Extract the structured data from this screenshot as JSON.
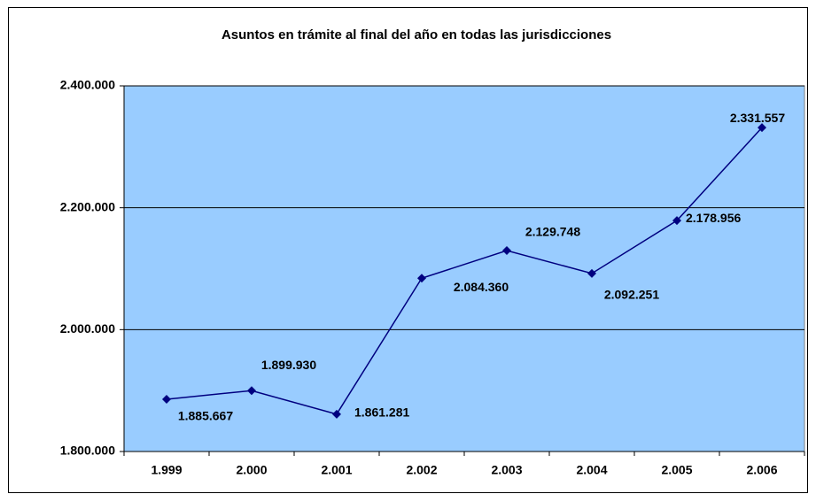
{
  "chart_data": {
    "type": "line",
    "title": "Asuntos en trámite al final del año en todas las jurisdicciones",
    "categories": [
      "1.999",
      "2.000",
      "2.001",
      "2.002",
      "2.003",
      "2.004",
      "2.005",
      "2.006"
    ],
    "series": [
      {
        "color": "#000080",
        "values": [
          1885667,
          1899930,
          1861281,
          2084360,
          2129748,
          2092251,
          2178956,
          2331557
        ],
        "value_labels": [
          "1.885.667",
          "1.899.930",
          "1.861.281",
          "2.084.360",
          "2.129.748",
          "2.092.251",
          "2.178.956",
          "2.331.557"
        ]
      }
    ],
    "ylim": [
      1800000,
      2400000
    ],
    "yticks": [
      {
        "value": 1800000,
        "label": "1.800.000"
      },
      {
        "value": 2000000,
        "label": "2.000.000"
      },
      {
        "value": 2200000,
        "label": "2.200.000"
      },
      {
        "value": 2400000,
        "label": "2.400.000"
      }
    ],
    "grid": true,
    "plot_background": "#99ccff"
  }
}
